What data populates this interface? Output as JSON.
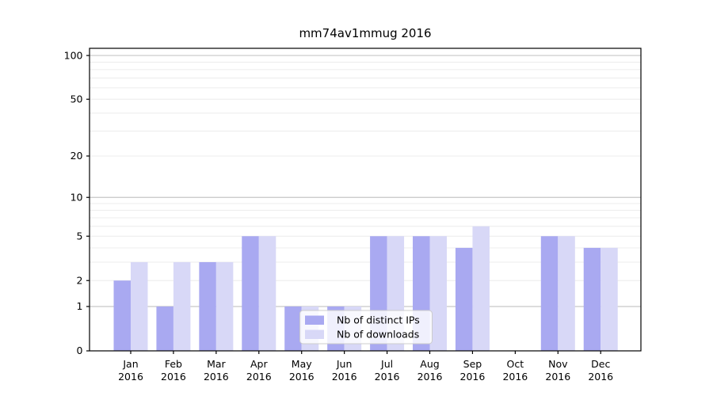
{
  "chart_data": {
    "type": "bar",
    "title": "mm74av1mmug 2016",
    "categories": [
      "Jan",
      "Feb",
      "Mar",
      "Apr",
      "May",
      "Jun",
      "Jul",
      "Aug",
      "Sep",
      "Oct",
      "Nov",
      "Dec"
    ],
    "x_year_label": "2016",
    "series": [
      {
        "name": "Nb of distinct IPs",
        "color": "#a9a9f1",
        "values": [
          2,
          1,
          3,
          5,
          1,
          1,
          5,
          5,
          4,
          0,
          5,
          4
        ]
      },
      {
        "name": "Nb of downloads",
        "color": "#d8d8f7",
        "values": [
          3,
          3,
          3,
          5,
          1,
          1,
          5,
          5,
          6,
          0,
          5,
          4
        ]
      }
    ],
    "yscale": "log1p",
    "ylim": [
      0,
      112
    ],
    "ytick_values": [
      0,
      1,
      2,
      5,
      10,
      20,
      50,
      100
    ],
    "ytick_labels": [
      "0",
      "1",
      "2",
      "5",
      "10",
      "20",
      "50",
      "100"
    ],
    "grid_major_values": [
      1,
      10,
      100
    ],
    "grid_minor_values": [
      2,
      3,
      4,
      5,
      6,
      7,
      8,
      9,
      20,
      30,
      40,
      50,
      60,
      70,
      80,
      90
    ],
    "legend_position": "lower-center",
    "grid_on": true,
    "colors": {
      "axis": "#000000",
      "major_grid": "#c6c6c6",
      "minor_grid": "#ececec",
      "legend_border": "#cccccc",
      "legend_bg": "rgba(255,255,255,0.82)",
      "background": "#ffffff"
    }
  }
}
